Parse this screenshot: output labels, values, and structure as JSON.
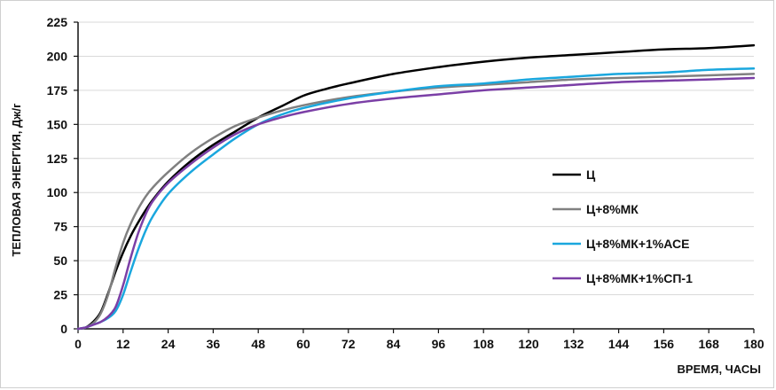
{
  "chart_data": {
    "type": "line",
    "title": "",
    "xlabel": "ВРЕМЯ, ЧАСЫ",
    "ylabel": "ТЕПЛОВАЯ ЭНЕРГИЯ, Дж/г",
    "xlim": [
      0,
      180
    ],
    "ylim": [
      0,
      225
    ],
    "xticks": [
      0,
      12,
      24,
      36,
      48,
      60,
      72,
      84,
      96,
      108,
      120,
      132,
      144,
      156,
      168,
      180
    ],
    "yticks": [
      0,
      25,
      50,
      75,
      100,
      125,
      150,
      175,
      200,
      225
    ],
    "grid": "horizontal",
    "legend_position": "center-right",
    "series": [
      {
        "name": "Ц",
        "color": "#000000",
        "x": [
          0,
          2,
          4,
          6,
          8,
          10,
          12,
          14,
          16,
          18,
          20,
          24,
          30,
          36,
          42,
          48,
          54,
          60,
          66,
          72,
          84,
          96,
          108,
          120,
          132,
          144,
          156,
          168,
          180
        ],
        "y": [
          0,
          1,
          5,
          12,
          26,
          42,
          56,
          68,
          78,
          87,
          95,
          108,
          123,
          135,
          145,
          155,
          163,
          171,
          176,
          180,
          187,
          192,
          196,
          199,
          201,
          203,
          205,
          206,
          208
        ]
      },
      {
        "name": "Ц+8%МК",
        "color": "#808080",
        "x": [
          0,
          2,
          4,
          6,
          8,
          10,
          12,
          14,
          16,
          18,
          20,
          24,
          30,
          36,
          42,
          48,
          54,
          60,
          72,
          84,
          96,
          108,
          120,
          132,
          144,
          156,
          168,
          180
        ],
        "y": [
          0,
          1,
          4,
          11,
          25,
          45,
          63,
          77,
          88,
          97,
          104,
          115,
          129,
          140,
          149,
          155,
          160,
          164,
          170,
          174,
          177,
          179,
          181,
          183,
          184,
          185,
          186,
          187
        ]
      },
      {
        "name": "Ц+8%МК+1%АСЕ",
        "color": "#1aa7de",
        "x": [
          0,
          2,
          4,
          6,
          8,
          10,
          12,
          14,
          16,
          18,
          20,
          24,
          30,
          36,
          42,
          48,
          54,
          60,
          72,
          84,
          96,
          108,
          120,
          132,
          144,
          156,
          168,
          180
        ],
        "y": [
          0,
          1,
          3,
          5,
          8,
          13,
          25,
          42,
          58,
          72,
          83,
          99,
          115,
          128,
          140,
          150,
          157,
          162,
          169,
          174,
          178,
          180,
          183,
          185,
          187,
          188,
          190,
          191
        ]
      },
      {
        "name": "Ц+8%МК+1%СП-1",
        "color": "#7b3fa6",
        "x": [
          0,
          2,
          4,
          6,
          8,
          10,
          12,
          14,
          16,
          18,
          20,
          24,
          30,
          36,
          42,
          48,
          54,
          60,
          72,
          84,
          96,
          108,
          120,
          132,
          144,
          156,
          168,
          180
        ],
        "y": [
          0,
          1,
          3,
          5,
          9,
          16,
          32,
          52,
          70,
          84,
          94,
          107,
          121,
          133,
          143,
          150,
          155,
          159,
          165,
          169,
          172,
          175,
          177,
          179,
          181,
          182,
          183,
          184
        ]
      }
    ]
  }
}
